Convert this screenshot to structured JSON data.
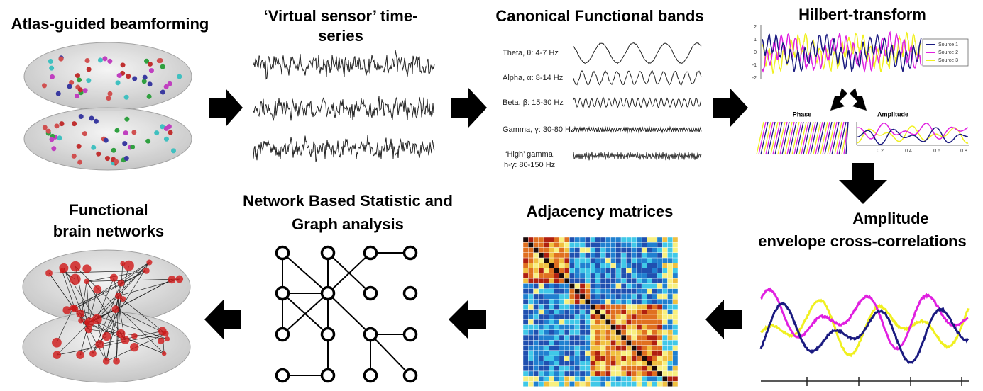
{
  "steps": {
    "beamforming": {
      "title": "Atlas-guided beamforming"
    },
    "virtual_sensor": {
      "title_lines": [
        "‘Virtual sensor’ time-",
        "series"
      ]
    },
    "bands": {
      "title": "Canonical Functional bands",
      "items": [
        {
          "label_lines": [
            "Theta, θ: 4-7 Hz"
          ]
        },
        {
          "label_lines": [
            "Alpha, α: 8-14 Hz"
          ]
        },
        {
          "label_lines": [
            "Beta, β: 15-30 Hz"
          ]
        },
        {
          "label_lines": [
            "Gamma, γ: 30-80 Hz"
          ]
        },
        {
          "label_lines": [
            "‘High’ gamma,",
            "h-γ: 80-150 Hz"
          ]
        }
      ]
    },
    "hilbert": {
      "title": "Hilbert-transform",
      "y_ticks": [
        "2",
        "1",
        "0",
        "-1",
        "-2"
      ],
      "legend": [
        "Source 1",
        "Source 2",
        "Source 3"
      ],
      "phase_label": "Phase",
      "amplitude_label": "Amplitude",
      "amplitude_x_ticks": [
        "0.2",
        "0.4",
        "0.6",
        "0.8"
      ]
    },
    "correlations": {
      "title_lines": [
        "Amplitude",
        "envelope cross-correlations"
      ]
    },
    "adjacency": {
      "title": "Adjacency matrices"
    },
    "nbs": {
      "title_lines": [
        "Network Based Statistic and",
        "Graph analysis"
      ]
    },
    "networks": {
      "title_lines": [
        "Functional",
        "brain networks"
      ]
    }
  }
}
